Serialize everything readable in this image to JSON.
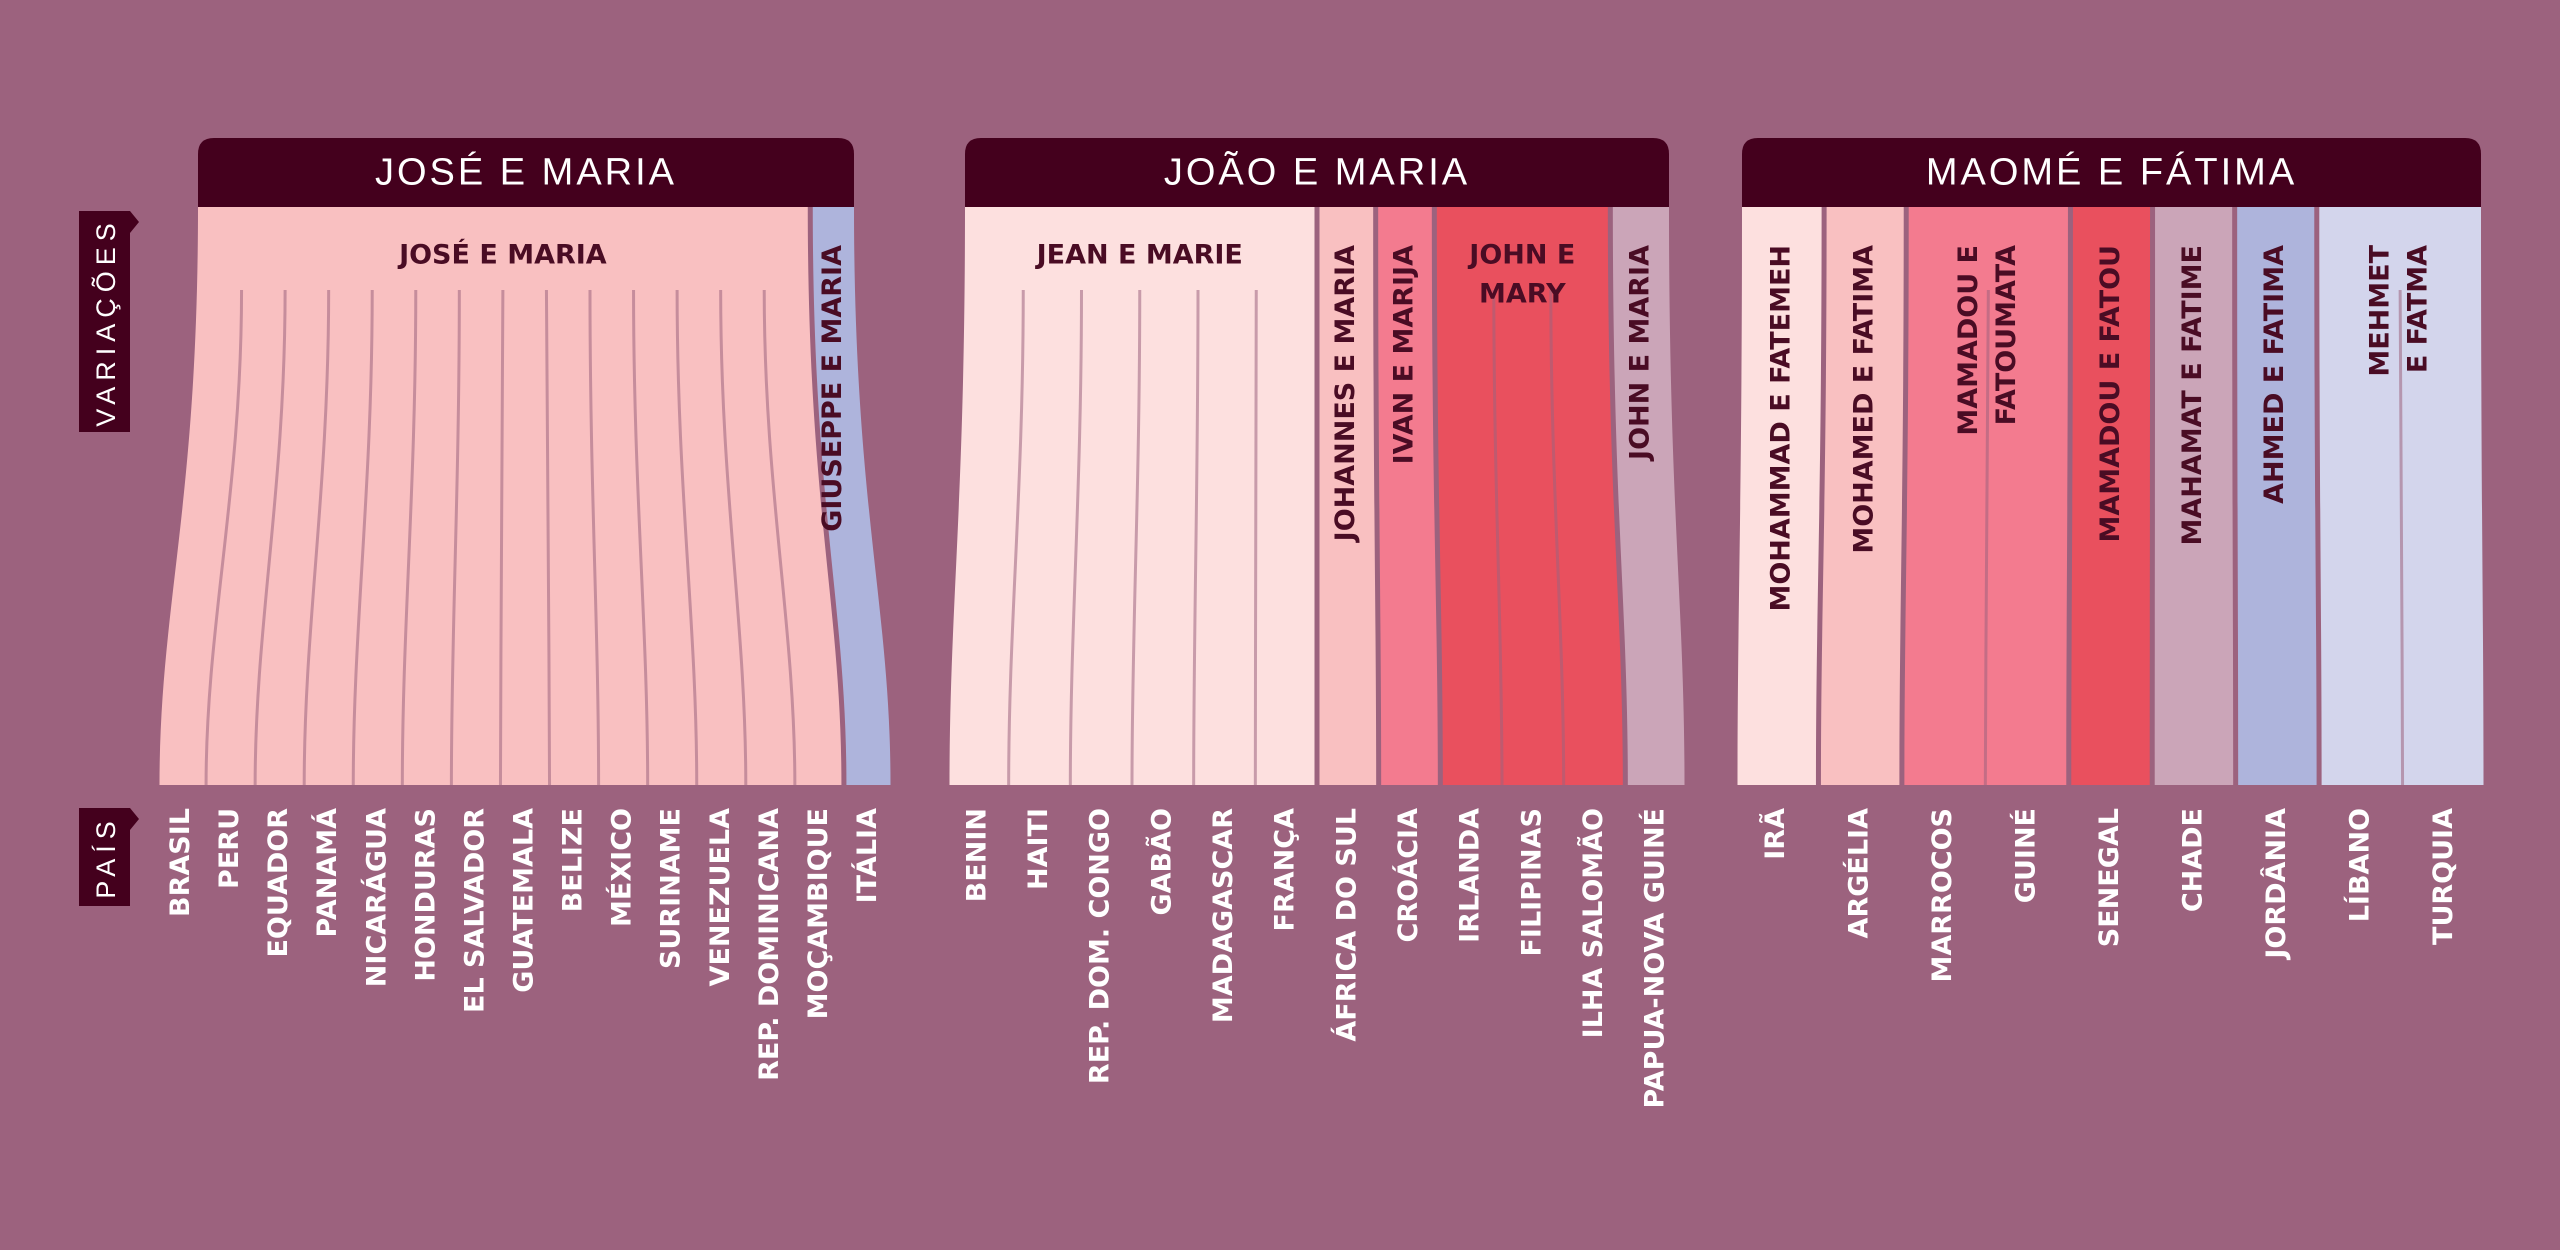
{
  "axis_labels": {
    "variations": "VARIAÇÕES",
    "country": "PAÍS"
  },
  "colors": {
    "background": "#9c627e",
    "header": "#44001d",
    "dark_text": "#4a0c24",
    "light_text": "#ffffff",
    "pink_light": "#f9c0c1",
    "pink_pale": "#fde0df",
    "pink_medium": "#f37b8f",
    "red": "#e9505e",
    "mauve": "#cba5b8",
    "lavender": "#aeb4dc",
    "lavender_pale": "#d3d5ec"
  },
  "groups": [
    {
      "title": "JOSÉ E MARIA",
      "variations": [
        {
          "label": [
            "JOSÉ E MARIA"
          ],
          "orientation": "horizontal",
          "color": "pink_light",
          "countries": [
            "BRASIL",
            "PERU",
            "EQUADOR",
            "PANAMÁ",
            "NICARÁGUA",
            "HONDURAS",
            "EL SALVADOR",
            "GUATEMALA",
            "BELIZE",
            "MÉXICO",
            "SURINAME",
            "VENEZUELA",
            "REP. DOMINICANA",
            "MOÇAMBIQUE"
          ]
        },
        {
          "label": [
            "GIUSEPPE E MARIA"
          ],
          "orientation": "vertical",
          "color": "lavender",
          "countries": [
            "ITÁLIA"
          ]
        }
      ]
    },
    {
      "title": "JOÃO E MARIA",
      "variations": [
        {
          "label": [
            "JEAN E MARIE"
          ],
          "orientation": "horizontal",
          "color": "pink_pale",
          "countries": [
            "BENIN",
            "HAITI",
            "REP. DOM. CONGO",
            "GABÃO",
            "MADAGASCAR",
            "FRANÇA"
          ]
        },
        {
          "label": [
            "JOHANNES E MARIA"
          ],
          "orientation": "vertical",
          "color": "pink_light",
          "countries": [
            "ÁFRICA DO SUL"
          ]
        },
        {
          "label": [
            "IVAN E MARIJA"
          ],
          "orientation": "vertical",
          "color": "pink_medium",
          "countries": [
            "CROÁCIA"
          ]
        },
        {
          "label": [
            "JOHN E",
            "MARY"
          ],
          "orientation": "horizontal",
          "color": "red",
          "countries": [
            "IRLANDA",
            "FILIPINAS",
            "ILHA SALOMÃO"
          ]
        },
        {
          "label": [
            "JOHN E MARIA"
          ],
          "orientation": "vertical",
          "color": "mauve",
          "countries": [
            "PAPUA-NOVA GUINÉ"
          ]
        }
      ]
    },
    {
      "title": "MAOMÉ E FÁTIMA",
      "variations": [
        {
          "label": [
            "MOHAMMAD E FATEMEH"
          ],
          "orientation": "vertical",
          "color": "pink_pale",
          "countries": [
            "IRÃ"
          ]
        },
        {
          "label": [
            "MOHAMED E FATIMA"
          ],
          "orientation": "vertical",
          "color": "pink_light",
          "countries": [
            "ARGÉLIA"
          ]
        },
        {
          "label": [
            "MAMADOU E",
            "FATOUMATA"
          ],
          "orientation": "vertical",
          "color": "pink_medium",
          "countries": [
            "MARROCOS",
            "GUINÉ"
          ]
        },
        {
          "label": [
            "MAMADOU E FATOU"
          ],
          "orientation": "vertical",
          "color": "red",
          "countries": [
            "SENEGAL"
          ]
        },
        {
          "label": [
            "MAHAMAT E FATIME"
          ],
          "orientation": "vertical",
          "color": "mauve",
          "countries": [
            "CHADE"
          ]
        },
        {
          "label": [
            "AHMED E FATIMA"
          ],
          "orientation": "vertical",
          "color": "lavender",
          "countries": [
            "JORDÂNIA"
          ]
        },
        {
          "label": [
            "MEHMET",
            "E FATMA"
          ],
          "orientation": "vertical",
          "color": "lavender_pale",
          "countries": [
            "LÍBANO",
            "TURQUIA"
          ]
        }
      ]
    }
  ]
}
